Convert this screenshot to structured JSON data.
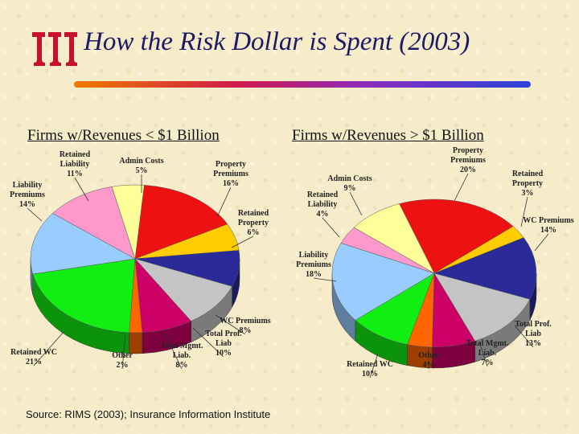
{
  "title": "How the Risk Dollar is Spent (2003)",
  "source": "Source:  RIMS (2003); Insurance Information Institute",
  "colors": {
    "title": "#1a1a66",
    "accent_bar": "#6b2fbf",
    "logo": "#c8102e"
  },
  "chart_data": [
    {
      "type": "pie",
      "title": "Firms w/Revenues < $1 Billion",
      "slices": [
        {
          "name_lines": [
            "Property",
            "Premiums"
          ],
          "value": 16,
          "pct": "16%",
          "color": "#ee1111"
        },
        {
          "name_lines": [
            "Retained",
            "Property"
          ],
          "value": 6,
          "pct": "6%",
          "color": "#ffcc00"
        },
        {
          "name_lines": [
            "WC Premiums"
          ],
          "value": 8,
          "pct": "8%",
          "color": "#2a2a99"
        },
        {
          "name_lines": [
            "Total Prof.",
            "Liab"
          ],
          "value": 10,
          "pct": "10%",
          "color": "#c4c4c4"
        },
        {
          "name_lines": [
            "Total Mgmt.",
            "Liab."
          ],
          "value": 8,
          "pct": "8%",
          "color": "#cc0066"
        },
        {
          "name_lines": [
            "Other"
          ],
          "value": 2,
          "pct": "2%",
          "color": "#ff6600"
        },
        {
          "name_lines": [
            "Retained WC"
          ],
          "value": 21,
          "pct": "21%",
          "color": "#11ee11"
        },
        {
          "name_lines": [
            "Liability",
            "Premiums"
          ],
          "value": 14,
          "pct": "14%",
          "color": "#99ccff"
        },
        {
          "name_lines": [
            "Retained",
            "Liability"
          ],
          "value": 11,
          "pct": "11%",
          "color": "#ff99cc"
        },
        {
          "name_lines": [
            "Admin Costs"
          ],
          "value": 5,
          "pct": "5%",
          "color": "#ffff99"
        }
      ]
    },
    {
      "type": "pie",
      "title": "Firms w/Revenues > $1 Billion",
      "slices": [
        {
          "name_lines": [
            "Property",
            "Premiums"
          ],
          "value": 20,
          "pct": "20%",
          "color": "#ee1111"
        },
        {
          "name_lines": [
            "Retained",
            "Property"
          ],
          "value": 3,
          "pct": "3%",
          "color": "#ffcc00"
        },
        {
          "name_lines": [
            "WC Premiums"
          ],
          "value": 14,
          "pct": "14%",
          "color": "#2a2a99"
        },
        {
          "name_lines": [
            "Total Prof.",
            "Liab"
          ],
          "value": 13,
          "pct": "13%",
          "color": "#c4c4c4"
        },
        {
          "name_lines": [
            "Total Mgmt.",
            "Liab."
          ],
          "value": 7,
          "pct": "7%",
          "color": "#cc0066"
        },
        {
          "name_lines": [
            "Other"
          ],
          "value": 4,
          "pct": "4%",
          "color": "#ff6600"
        },
        {
          "name_lines": [
            "Retained WC"
          ],
          "value": 10,
          "pct": "10%",
          "color": "#11ee11"
        },
        {
          "name_lines": [
            "Liability",
            "Premiums"
          ],
          "value": 18,
          "pct": "18%",
          "color": "#99ccff"
        },
        {
          "name_lines": [
            "Retained",
            "Liability"
          ],
          "value": 4,
          "pct": "4%",
          "color": "#ff99cc"
        },
        {
          "name_lines": [
            "Admin Costs"
          ],
          "value": 9,
          "pct": "9%",
          "color": "#ffff99"
        }
      ]
    }
  ]
}
